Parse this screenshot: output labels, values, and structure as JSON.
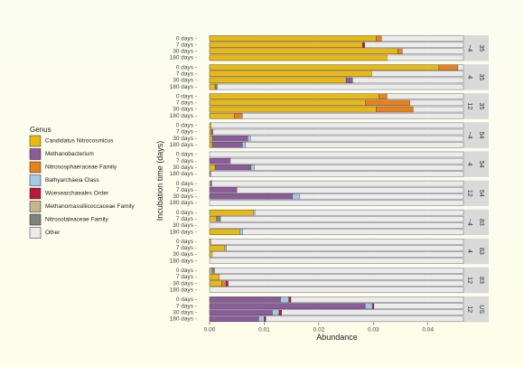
{
  "chart_data": {
    "type": "bar",
    "orientation": "horizontal",
    "stacked": true,
    "xlabel": "Abundance",
    "ylabel": "Incubation time (days)",
    "xlim": [
      0,
      0.0465
    ],
    "xticks": [
      0.0,
      0.01,
      0.02,
      0.03,
      0.04
    ],
    "xtick_labels": [
      "0.00",
      "0.01",
      "0.02",
      "0.03",
      "0.04"
    ],
    "grid": true,
    "legend": {
      "title": "Genus",
      "position": "left",
      "entries": [
        {
          "name": "Candidatus Nitrocosmicus",
          "color": "#e8b814"
        },
        {
          "name": "Methanobacterium",
          "color": "#8a5c9a"
        },
        {
          "name": "Nitrososphaeraceae Family",
          "color": "#e8801c"
        },
        {
          "name": "Bathyarchaeia Class",
          "color": "#a8c8e8"
        },
        {
          "name": "Woesearchaeales Order",
          "color": "#b81840"
        },
        {
          "name": "Methanomassiliicoccaceae Family",
          "color": "#c8b48a"
        },
        {
          "name": "Nitrosotaleaceae Family",
          "color": "#808080"
        },
        {
          "name": "Other",
          "color": "#ebebeb"
        }
      ]
    },
    "time_labels": [
      "0 days",
      "7 days",
      "30 days",
      "180 days"
    ],
    "panels": [
      {
        "strip1": "35",
        "strip2": "~4",
        "bars": [
          [
            [
              "Candidatus Nitrocosmicus",
              0.0305
            ],
            [
              "Nitrososphaeraceae Family",
              0.001
            ]
          ],
          [
            [
              "Candidatus Nitrocosmicus",
              0.028
            ],
            [
              "Woesearchaeales Order",
              0.0004
            ]
          ],
          [
            [
              "Candidatus Nitrocosmicus",
              0.0345
            ],
            [
              "Nitrososphaeraceae Family",
              0.0008
            ]
          ],
          [
            [
              "Candidatus Nitrocosmicus",
              0.0325
            ]
          ]
        ]
      },
      {
        "strip1": "35",
        "strip2": "4",
        "bars": [
          [
            [
              "Candidatus Nitrocosmicus",
              0.042
            ],
            [
              "Nitrososphaeraceae Family",
              0.0035
            ]
          ],
          [
            [
              "Candidatus Nitrocosmicus",
              0.0297
            ]
          ],
          [
            [
              "Candidatus Nitrocosmicus",
              0.025
            ],
            [
              "Methanobacterium",
              0.0012
            ]
          ],
          [
            [
              "Candidatus Nitrocosmicus",
              0.001
            ],
            [
              "Nitrosotaleaceae Family",
              0.0004
            ]
          ]
        ]
      },
      {
        "strip1": "35",
        "strip2": "12",
        "bars": [
          [
            [
              "Candidatus Nitrocosmicus",
              0.031
            ],
            [
              "Nitrososphaeraceae Family",
              0.0015
            ]
          ],
          [
            [
              "Candidatus Nitrocosmicus",
              0.0285
            ],
            [
              "Nitrososphaeraceae Family",
              0.0082
            ]
          ],
          [
            [
              "Candidatus Nitrocosmicus",
              0.0305
            ],
            [
              "Nitrososphaeraceae Family",
              0.0068
            ]
          ],
          [
            [
              "Candidatus Nitrocosmicus",
              0.0045
            ],
            [
              "Nitrososphaeraceae Family",
              0.0015
            ]
          ]
        ]
      },
      {
        "strip1": "54",
        "strip2": "~4",
        "bars": [
          [
            [
              "Candidatus Nitrocosmicus",
              0.0003
            ]
          ],
          [
            [
              "Candidatus Nitrocosmicus",
              0.0003
            ],
            [
              "Methanobacterium",
              0.0003
            ]
          ],
          [
            [
              "Candidatus Nitrocosmicus",
              0.0005
            ],
            [
              "Methanobacterium",
              0.0065
            ],
            [
              "Bathyarchaeia Class",
              0.0005
            ]
          ],
          [
            [
              "Candidatus Nitrocosmicus",
              0.0005
            ],
            [
              "Methanobacterium",
              0.0055
            ],
            [
              "Bathyarchaeia Class",
              0.0006
            ]
          ]
        ]
      },
      {
        "strip1": "54",
        "strip2": "4",
        "bars": [
          [],
          [
            [
              "Methanobacterium",
              0.0038
            ]
          ],
          [
            [
              "Candidatus Nitrocosmicus",
              0.001
            ],
            [
              "Methanobacterium",
              0.0063
            ],
            [
              "Nitrosotaleaceae Family",
              0.0003
            ],
            [
              "Bathyarchaeia Class",
              0.0006
            ]
          ],
          [
            [
              "Nitrosotaleaceae Family",
              0.0002
            ]
          ]
        ]
      },
      {
        "strip1": "54",
        "strip2": "12",
        "bars": [
          [
            [
              "Methanomassiliicoccaceae Family",
              0.0002
            ],
            [
              "Nitrosotaleaceae Family",
              0.0002
            ]
          ],
          [
            [
              "Methanobacterium",
              0.005
            ]
          ],
          [
            [
              "Methanobacterium",
              0.0152
            ],
            [
              "Bathyarchaeia Class",
              0.0013
            ]
          ],
          []
        ]
      },
      {
        "strip1": "83",
        "strip2": "~4",
        "bars": [
          [
            [
              "Candidatus Nitrocosmicus",
              0.008
            ],
            [
              "Bathyarchaeia Class",
              0.0003
            ]
          ],
          [
            [
              "Candidatus Nitrocosmicus",
              0.0013
            ],
            [
              "Nitrosotaleaceae Family",
              0.0007
            ]
          ],
          [],
          [
            [
              "Candidatus Nitrocosmicus",
              0.0055
            ],
            [
              "Bathyarchaeia Class",
              0.0006
            ]
          ]
        ]
      },
      {
        "strip1": "83",
        "strip2": "4",
        "bars": [
          [
            [
              "Nitrososphaeraceae Family",
              0.0002
            ]
          ],
          [
            [
              "Candidatus Nitrocosmicus",
              0.0028
            ],
            [
              "Bathyarchaeia Class",
              0.0003
            ]
          ],
          [
            [
              "Candidatus Nitrocosmicus",
              0.0005
            ]
          ],
          []
        ]
      },
      {
        "strip1": "83",
        "strip2": "12",
        "bars": [
          [
            [
              "Methanomassiliicoccaceae Family",
              0.0005
            ],
            [
              "Nitrosotaleaceae Family",
              0.0004
            ]
          ],
          [
            [
              "Candidatus Nitrocosmicus",
              0.0018
            ]
          ],
          [
            [
              "Candidatus Nitrocosmicus",
              0.0022
            ],
            [
              "Nitrososphaeraceae Family",
              0.0008
            ],
            [
              "Woesearchaeales Order",
              0.0004
            ]
          ],
          []
        ]
      },
      {
        "strip1": "US",
        "strip2": "12",
        "bars": [
          [
            [
              "Methanobacterium",
              0.013
            ],
            [
              "Bathyarchaeia Class",
              0.0015
            ],
            [
              "Woesearchaeales Order",
              0.0004
            ]
          ],
          [
            [
              "Methanobacterium",
              0.0285
            ],
            [
              "Bathyarchaeia Class",
              0.0013
            ],
            [
              "Woesearchaeales Order",
              0.0003
            ]
          ],
          [
            [
              "Methanobacterium",
              0.0115
            ],
            [
              "Bathyarchaeia Class",
              0.0012
            ],
            [
              "Woesearchaeales Order",
              0.0005
            ]
          ],
          [
            [
              "Methanobacterium",
              0.009
            ],
            [
              "Bathyarchaeia Class",
              0.001
            ],
            [
              "Woesearchaeales Order",
              0.0003
            ]
          ]
        ]
      }
    ]
  }
}
